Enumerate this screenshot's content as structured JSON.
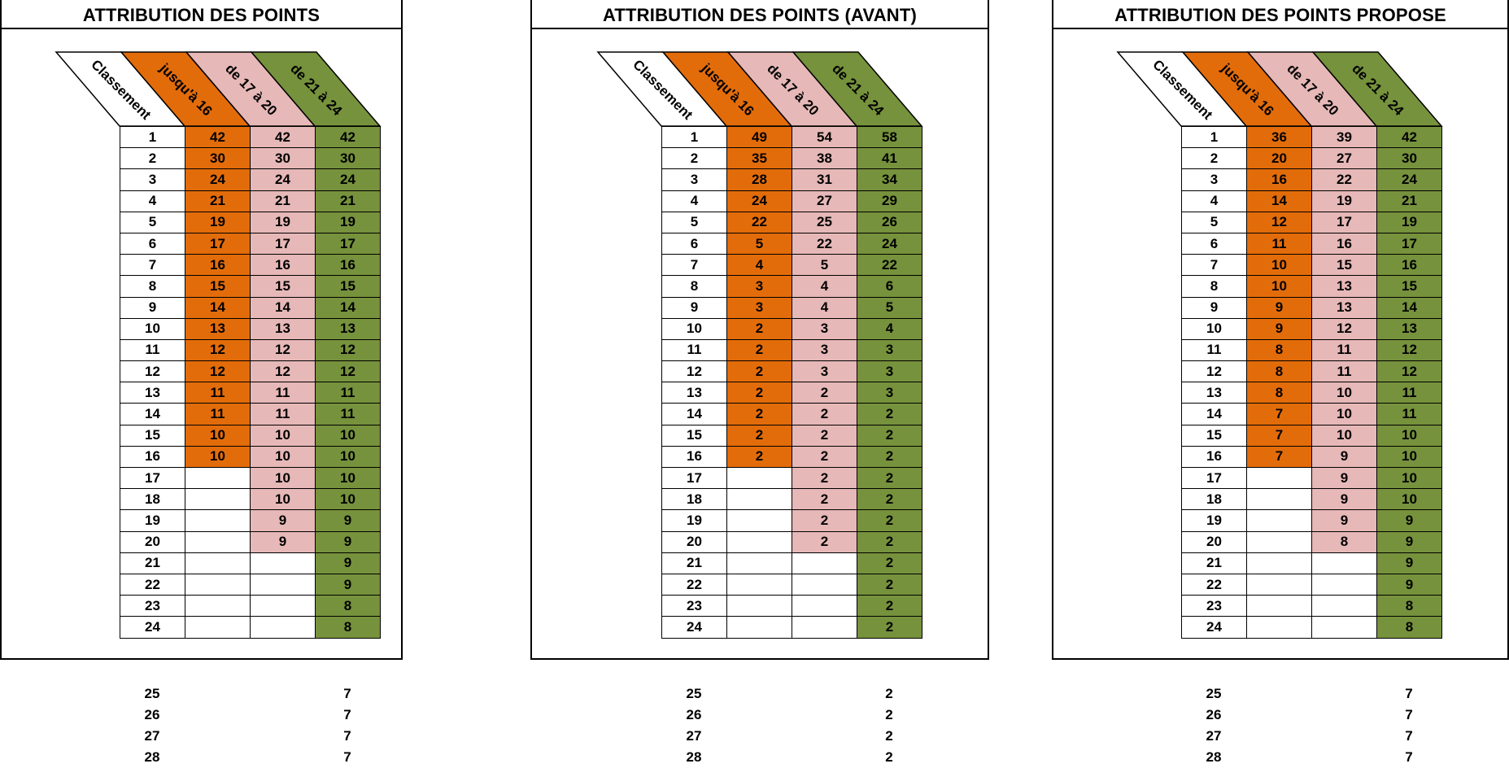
{
  "colors": {
    "rank": "#ffffff",
    "upto16": "#E36C0A",
    "from17to20": "#E6B8B7",
    "from21to24": "#76923C"
  },
  "panels": [
    {
      "title": "ATTRIBUTION DES POINTS",
      "headers": [
        "Classement",
        "jusqu'à 16",
        "de 17 à 20",
        "de 21 à 24"
      ],
      "ranks": [
        1,
        2,
        3,
        4,
        5,
        6,
        7,
        8,
        9,
        10,
        11,
        12,
        13,
        14,
        15,
        16,
        17,
        18,
        19,
        20,
        21,
        22,
        23,
        24
      ],
      "upto16": [
        42,
        30,
        24,
        21,
        19,
        17,
        16,
        15,
        14,
        13,
        12,
        12,
        11,
        11,
        10,
        10
      ],
      "from17to20": [
        42,
        30,
        24,
        21,
        19,
        17,
        16,
        15,
        14,
        13,
        12,
        12,
        11,
        11,
        10,
        10,
        10,
        10,
        9,
        9
      ],
      "from21to24": [
        42,
        30,
        24,
        21,
        19,
        17,
        16,
        15,
        14,
        13,
        12,
        12,
        11,
        11,
        10,
        10,
        10,
        10,
        9,
        9,
        9,
        9,
        8,
        8
      ],
      "extra_ranks": [
        25,
        26,
        27,
        28
      ],
      "extra_points": [
        7,
        7,
        7,
        7
      ]
    },
    {
      "title": "ATTRIBUTION DES POINTS (AVANT)",
      "headers": [
        "Classement",
        "jusqu'à 16",
        "de 17 à 20",
        "de 21 à 24"
      ],
      "ranks": [
        1,
        2,
        3,
        4,
        5,
        6,
        7,
        8,
        9,
        10,
        11,
        12,
        13,
        14,
        15,
        16,
        17,
        18,
        19,
        20,
        21,
        22,
        23,
        24
      ],
      "upto16": [
        49,
        35,
        28,
        24,
        22,
        5,
        4,
        3,
        3,
        2,
        2,
        2,
        2,
        2,
        2,
        2
      ],
      "from17to20": [
        54,
        38,
        31,
        27,
        25,
        22,
        5,
        4,
        4,
        3,
        3,
        3,
        2,
        2,
        2,
        2,
        2,
        2,
        2,
        2
      ],
      "from21to24": [
        58,
        41,
        34,
        29,
        26,
        24,
        22,
        6,
        5,
        4,
        3,
        3,
        3,
        2,
        2,
        2,
        2,
        2,
        2,
        2,
        2,
        2,
        2,
        2
      ],
      "extra_ranks": [
        25,
        26,
        27,
        28
      ],
      "extra_points": [
        2,
        2,
        2,
        2
      ]
    },
    {
      "title": "ATTRIBUTION DES POINTS PROPOSE",
      "headers": [
        "Classement",
        "jusqu'à 16",
        "de 17 à 20",
        "de 21 à 24"
      ],
      "ranks": [
        1,
        2,
        3,
        4,
        5,
        6,
        7,
        8,
        9,
        10,
        11,
        12,
        13,
        14,
        15,
        16,
        17,
        18,
        19,
        20,
        21,
        22,
        23,
        24
      ],
      "upto16": [
        36,
        20,
        16,
        14,
        12,
        11,
        10,
        10,
        9,
        9,
        8,
        8,
        8,
        7,
        7,
        7
      ],
      "from17to20": [
        39,
        27,
        22,
        19,
        17,
        16,
        15,
        13,
        13,
        12,
        11,
        11,
        10,
        10,
        10,
        9,
        9,
        9,
        9,
        8
      ],
      "from21to24": [
        42,
        30,
        24,
        21,
        19,
        17,
        16,
        15,
        14,
        13,
        12,
        12,
        11,
        11,
        10,
        10,
        10,
        10,
        9,
        9,
        9,
        9,
        8,
        8
      ],
      "extra_ranks": [
        25,
        26,
        27,
        28
      ],
      "extra_points": [
        7,
        7,
        7,
        7
      ]
    }
  ]
}
